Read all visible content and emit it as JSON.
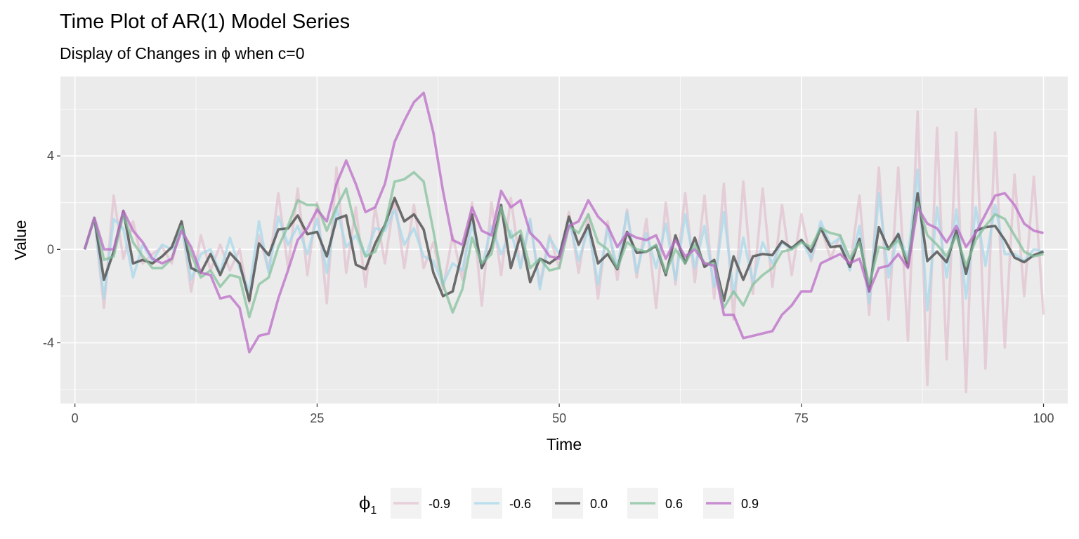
{
  "chart_data": {
    "type": "line",
    "title": "Time Plot of AR(1) Model Series",
    "subtitle": "Display of Changes in ϕ when c=0",
    "xlabel": "Time",
    "ylabel": "Value",
    "xlim": [
      -1.5,
      102.5
    ],
    "ylim": [
      -6.6,
      7.4
    ],
    "x_ticks": [
      0,
      25,
      50,
      75,
      100
    ],
    "x_tick_labels": [
      "0",
      "25",
      "50",
      "75",
      "100"
    ],
    "y_ticks": [
      -4,
      0,
      4
    ],
    "y_tick_labels": [
      "-4",
      "0",
      "4"
    ],
    "grid": true,
    "legend_position": "bottom",
    "legend_title": "ϕ",
    "legend_title_subscript": "1",
    "x": [
      1,
      2,
      3,
      4,
      5,
      6,
      7,
      8,
      9,
      10,
      11,
      12,
      13,
      14,
      15,
      16,
      17,
      18,
      19,
      20,
      21,
      22,
      23,
      24,
      25,
      26,
      27,
      28,
      29,
      30,
      31,
      32,
      33,
      34,
      35,
      36,
      37,
      38,
      39,
      40,
      41,
      42,
      43,
      44,
      45,
      46,
      47,
      48,
      49,
      50,
      51,
      52,
      53,
      54,
      55,
      56,
      57,
      58,
      59,
      60,
      61,
      62,
      63,
      64,
      65,
      66,
      67,
      68,
      69,
      70,
      71,
      72,
      73,
      74,
      75,
      76,
      77,
      78,
      79,
      80,
      81,
      82,
      83,
      84,
      85,
      86,
      87,
      88,
      89,
      90,
      91,
      92,
      93,
      94,
      95,
      96,
      97,
      98,
      99,
      100
    ],
    "series": [
      {
        "name": "-0.9",
        "color": "#dfb4c6",
        "opacity": 0.55,
        "values": [
          0,
          1.35,
          -2.5,
          2.3,
          -0.4,
          1.2,
          -0.6,
          -0.2,
          0.1,
          -0.6,
          1.2,
          -1.8,
          0.6,
          -0.9,
          0.2,
          -0.9,
          0.0,
          -2.3,
          0.6,
          -0.9,
          2.4,
          -0.8,
          2.6,
          -1.1,
          2.0,
          -2.3,
          3.5,
          -1.0,
          1.8,
          -1.6,
          1.8,
          -0.6,
          2.2,
          -0.8,
          1.9,
          -0.8,
          0.3,
          -1.7,
          0.6,
          -1.3,
          2.0,
          -2.4,
          2.0,
          -1.1,
          2.2,
          -0.8,
          1.2,
          -1.5,
          0.6,
          -0.8,
          1.6,
          -1.0,
          1.5,
          -2.1,
          1.2,
          -1.3,
          1.7,
          -1.2,
          1.3,
          -2.5,
          2.0,
          -1.5,
          2.4,
          -1.4,
          2.3,
          -2.1,
          2.8,
          -3.0,
          2.9,
          -1.9,
          2.6,
          -1.6,
          1.9,
          -1.1,
          1.5,
          -0.5,
          1.0,
          -0.4,
          0.6,
          -0.8,
          2.3,
          -2.8,
          3.5,
          -3.0,
          3.5,
          -3.9,
          5.9,
          -5.8,
          5.2,
          -4.7,
          5.0,
          -6.1,
          6.0,
          -5.1,
          5.0,
          -4.2,
          3.2,
          -2.0,
          3.1,
          -2.8
        ]
      },
      {
        "name": "-0.6",
        "color": "#a8d8ea",
        "opacity": 0.75,
        "values": [
          0,
          1.35,
          -2.1,
          1.3,
          0.9,
          -1.2,
          0.2,
          -0.5,
          0.2,
          0.0,
          1.0,
          -1.3,
          -0.2,
          0.0,
          -1.0,
          0.5,
          -0.8,
          -1.8,
          1.2,
          -1.0,
          1.4,
          0.2,
          1.0,
          -0.2,
          1.3,
          -1.0,
          1.8,
          0.1,
          0.6,
          -0.3,
          0.9,
          0.8,
          1.7,
          0.2,
          0.9,
          -0.3,
          -0.5,
          -1.5,
          -0.6,
          -0.9,
          1.1,
          -0.8,
          1.0,
          -0.2,
          0.8,
          -0.8,
          1.3,
          -1.7,
          0.5,
          -0.2,
          1.3,
          -0.5,
          0.9,
          -1.5,
          0.9,
          -0.8,
          1.6,
          -1.0,
          0.7,
          -0.8,
          1.1,
          -1.3,
          1.5,
          -0.8,
          1.0,
          -1.6,
          1.6,
          -1.9,
          0.5,
          -1.4,
          0.3,
          -0.6,
          0.3,
          0.0,
          0.4,
          -0.4,
          1.2,
          0.2,
          0.5,
          -0.9,
          1.0,
          -2.3,
          2.4,
          -1.2,
          0.7,
          -0.4,
          3.4,
          -2.6,
          1.8,
          -1.2,
          1.7,
          -2.1,
          1.8,
          -0.7,
          1.9,
          -0.2,
          -0.2,
          -0.5,
          0.0,
          -0.1
        ]
      },
      {
        "name": "0.0",
        "color": "#555555",
        "opacity": 0.85,
        "values": [
          0,
          1.35,
          -1.3,
          -0.1,
          1.65,
          -0.6,
          -0.45,
          -0.6,
          -0.3,
          0.1,
          1.2,
          -0.8,
          -1.0,
          -0.2,
          -1.1,
          -0.15,
          -0.6,
          -2.2,
          0.25,
          -0.25,
          0.85,
          0.9,
          1.45,
          0.65,
          0.75,
          -0.3,
          1.3,
          1.45,
          -0.65,
          -0.85,
          0.25,
          1.05,
          2.2,
          1.2,
          1.5,
          0.85,
          -1.0,
          -2.0,
          -1.8,
          -0.1,
          1.5,
          -0.8,
          0.1,
          1.9,
          -0.8,
          0.6,
          -1.4,
          -0.4,
          -0.6,
          -0.3,
          1.4,
          0.2,
          1.05,
          -0.6,
          -0.2,
          -0.85,
          0.75,
          -0.15,
          -0.1,
          0.15,
          -1.1,
          0.6,
          -0.6,
          0.5,
          -0.75,
          -0.45,
          -2.2,
          -0.3,
          -1.3,
          -0.3,
          -0.2,
          -0.25,
          0.35,
          0.05,
          0.4,
          -0.1,
          0.9,
          0.1,
          0.15,
          -0.75,
          0.45,
          -1.8,
          0.95,
          0.0,
          0.65,
          -0.75,
          2.4,
          -0.5,
          -0.1,
          -0.55,
          0.8,
          -1.05,
          0.8,
          0.95,
          1.0,
          0.4,
          -0.35,
          -0.55,
          -0.25,
          -0.1
        ]
      },
      {
        "name": "0.6",
        "color": "#7fbf98",
        "opacity": 0.7,
        "values": [
          0,
          1.35,
          -0.45,
          -0.3,
          1.5,
          0.3,
          -0.3,
          -0.8,
          -0.8,
          -0.4,
          1.0,
          -0.2,
          -1.2,
          -0.9,
          -1.6,
          -1.1,
          -1.2,
          -2.9,
          -1.5,
          -1.2,
          0.1,
          1.0,
          2.1,
          1.9,
          1.9,
          0.8,
          1.8,
          2.6,
          0.9,
          -0.3,
          -0.1,
          1.0,
          2.9,
          3.0,
          3.3,
          2.9,
          0.8,
          -1.5,
          -2.7,
          -1.7,
          0.5,
          -0.6,
          -0.2,
          1.8,
          0.5,
          0.8,
          -0.8,
          -0.4,
          -0.9,
          -0.8,
          1.0,
          0.7,
          1.5,
          0.3,
          0.0,
          -0.8,
          0.3,
          0.0,
          -0.1,
          0.2,
          -1.0,
          0.0,
          -0.6,
          0.2,
          -0.6,
          -0.6,
          -2.5,
          -1.8,
          -2.4,
          -1.5,
          -1.1,
          -0.8,
          -0.1,
          0.0,
          0.3,
          0.1,
          0.9,
          0.7,
          0.6,
          -0.4,
          0.3,
          -1.5,
          0.1,
          0.0,
          0.4,
          -0.5,
          2.0,
          0.6,
          0.2,
          -0.3,
          0.6,
          -0.7,
          0.4,
          1.0,
          1.5,
          1.3,
          0.6,
          -0.1,
          -0.3,
          -0.2
        ]
      },
      {
        "name": "0.9",
        "color": "#bb6bc7",
        "opacity": 0.75,
        "values": [
          0,
          1.35,
          0.0,
          0.0,
          1.65,
          0.8,
          0.3,
          -0.4,
          -0.6,
          -0.4,
          0.8,
          0.1,
          -1.0,
          -1.1,
          -2.1,
          -2.0,
          -2.5,
          -4.4,
          -3.7,
          -3.6,
          -2.1,
          -0.9,
          0.4,
          0.9,
          1.7,
          1.2,
          2.8,
          3.8,
          2.8,
          1.6,
          1.8,
          2.8,
          4.6,
          5.5,
          6.3,
          6.7,
          5.0,
          2.5,
          0.4,
          0.2,
          1.8,
          0.8,
          0.6,
          2.5,
          1.8,
          2.1,
          0.7,
          0.3,
          -0.3,
          -0.4,
          1.0,
          1.2,
          2.1,
          1.4,
          1.0,
          0.1,
          0.7,
          0.5,
          0.4,
          0.6,
          -0.4,
          0.4,
          -0.3,
          0.0,
          -0.6,
          -0.7,
          -2.8,
          -2.8,
          -3.8,
          -3.7,
          -3.6,
          -3.5,
          -2.8,
          -2.4,
          -1.8,
          -1.8,
          -0.6,
          -0.4,
          -0.2,
          -0.6,
          -0.4,
          -1.8,
          -0.8,
          -0.7,
          -0.2,
          -0.8,
          1.8,
          1.1,
          0.9,
          0.3,
          1.0,
          0.1,
          0.7,
          1.5,
          2.3,
          2.4,
          1.9,
          1.1,
          0.8,
          0.7
        ]
      }
    ]
  }
}
